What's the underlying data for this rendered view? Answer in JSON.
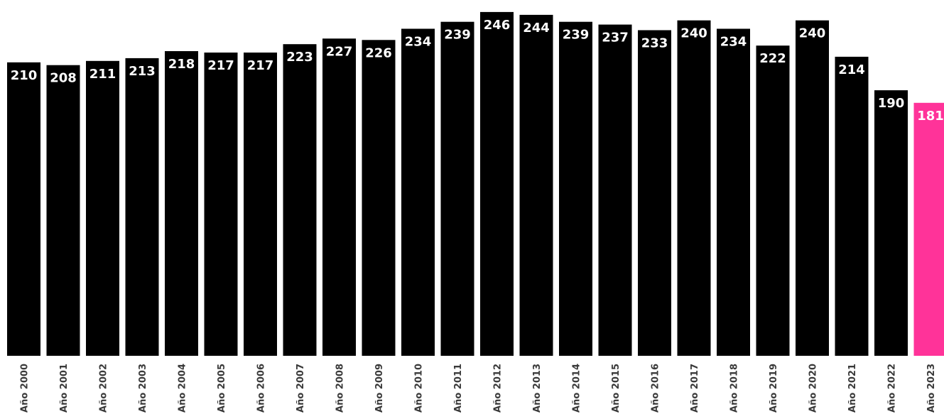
{
  "chart_data": {
    "type": "bar",
    "categories": [
      "Año 2000",
      "Año 2001",
      "Año 2002",
      "Año 2003",
      "Año 2004",
      "Año 2005",
      "Año 2006",
      "Año 2007",
      "Año 2008",
      "Año 2009",
      "Año 2010",
      "Año 2011",
      "Año 2012",
      "Año 2013",
      "Año 2014",
      "Año 2015",
      "Año 2016",
      "Año 2017",
      "Año 2018",
      "Año 2019",
      "Año 2020",
      "Año 2021",
      "Año 2022",
      "Año 2023"
    ],
    "values": [
      210,
      208,
      211,
      213,
      218,
      217,
      217,
      223,
      227,
      226,
      234,
      239,
      246,
      244,
      239,
      237,
      233,
      240,
      234,
      222,
      240,
      214,
      190,
      181
    ],
    "ylim": [
      0,
      248
    ],
    "grid": false,
    "legend": "none",
    "colors": {
      "default": "#000000",
      "highlight": "#ff3399",
      "label": "#ffffff"
    },
    "highlight_index": 23
  }
}
